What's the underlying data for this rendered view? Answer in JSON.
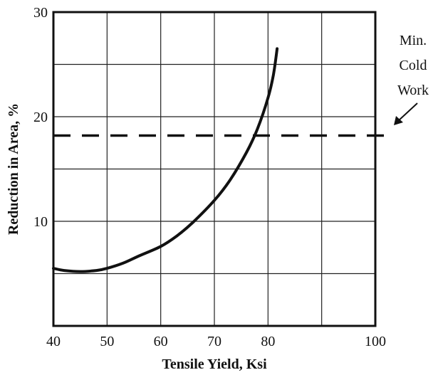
{
  "chart_data": {
    "type": "line",
    "xlabel": "Tensile Yield, Ksi",
    "ylabel": "Reduction in Area, %",
    "xlim": [
      40,
      100
    ],
    "ylim": [
      0,
      30
    ],
    "x_ticks": [
      40,
      50,
      60,
      70,
      80,
      100
    ],
    "x_tick_labels": [
      "40",
      "50",
      "60",
      "70",
      "80",
      "100"
    ],
    "x_grid": [
      40,
      50,
      60,
      70,
      80,
      90,
      100
    ],
    "y_ticks": [
      10,
      20,
      30
    ],
    "y_tick_labels": [
      "10",
      "20",
      "30"
    ],
    "y_grid": [
      5,
      10,
      15,
      20,
      25
    ],
    "grid": true,
    "series": [
      {
        "x": [
          40,
          42,
          45,
          48,
          50,
          53,
          56,
          60,
          63,
          66,
          70,
          73,
          76,
          78,
          80,
          81,
          81.7
        ],
        "y": [
          5.5,
          5.3,
          5.2,
          5.3,
          5.5,
          6.0,
          6.7,
          7.6,
          8.6,
          9.9,
          12.0,
          14.0,
          16.6,
          18.8,
          21.8,
          24.0,
          26.5
        ]
      }
    ],
    "reference_line": {
      "y": 18.2,
      "style": "dashed"
    },
    "annotation": {
      "lines": [
        "Min.",
        "Cold",
        "Work"
      ]
    }
  }
}
